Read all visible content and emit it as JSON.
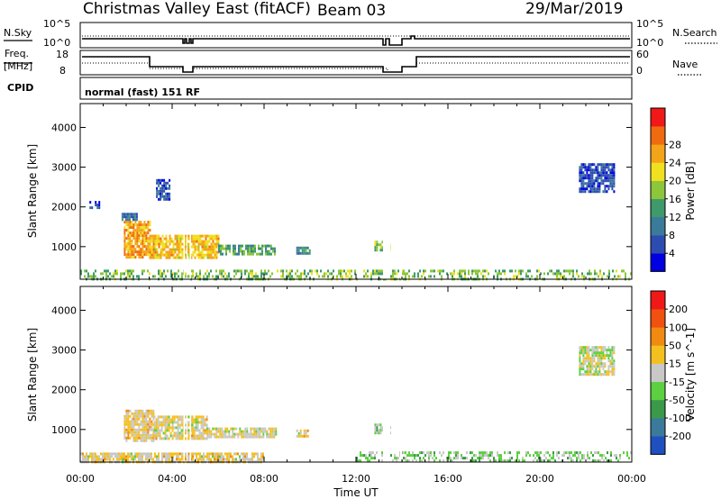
{
  "header": {
    "station": "Christmas Valley East (fitACF)",
    "beam": "Beam 03",
    "date": "29/Mar/2019"
  },
  "strip_panels": {
    "nsky": {
      "left_label": "N.Sky",
      "right_label": "N.Search",
      "left_ticks": [
        "10^5",
        "10^0"
      ],
      "right_ticks": [
        "10^5",
        "10^0"
      ]
    },
    "freq": {
      "left_label_1": "Freq.",
      "left_label_2": "[MHz]",
      "right_label": "Nave",
      "left_ticks": [
        "18",
        "8"
      ],
      "right_ticks": [
        "60",
        "0"
      ]
    },
    "cpid": {
      "label": "CPID",
      "value": "normal (fast) 151 RF"
    }
  },
  "colors": {
    "power_scale": [
      "#0000e0",
      "#2d4cb0",
      "#3a7a9a",
      "#3e9a6a",
      "#8cc63a",
      "#f0e020",
      "#f4a418",
      "#f06a10",
      "#f01818"
    ],
    "velocity_scale": [
      "#f01818",
      "#f05010",
      "#f08a10",
      "#f4c020",
      "#c8c8c8",
      "#5cd040",
      "#3a9a4a",
      "#3a7a9a",
      "#2050c0"
    ]
  },
  "chart_data": [
    {
      "type": "heatmap",
      "name": "Power",
      "title": "",
      "xlabel": "Time UT",
      "ylabel": "Slant Range [km]",
      "x_ticks": [
        "00:00",
        "04:00",
        "08:00",
        "12:00",
        "16:00",
        "20:00",
        "00:00"
      ],
      "y_ticks": [
        1000,
        2000,
        3000,
        4000
      ],
      "xlim_hours": [
        0,
        24
      ],
      "ylim_km": [
        180,
        4600
      ],
      "colorbar": {
        "label": "Power [dB]",
        "ticks": [
          "4",
          "8",
          "12",
          "16",
          "20",
          "24",
          "28"
        ],
        "range": [
          0,
          30
        ]
      },
      "regions": [
        {
          "t0": 1.9,
          "t1": 3.0,
          "r0": 700,
          "r1": 1650,
          "value": 22
        },
        {
          "t0": 3.0,
          "t1": 6.0,
          "r0": 750,
          "r1": 1300,
          "value": 20
        },
        {
          "t0": 6.0,
          "t1": 8.5,
          "r0": 800,
          "r1": 1050,
          "value": 12
        },
        {
          "t0": 9.4,
          "t1": 10.0,
          "r0": 850,
          "r1": 1000,
          "value": 10
        },
        {
          "t0": 12.8,
          "t1": 13.5,
          "r0": 900,
          "r1": 1150,
          "value": 16
        },
        {
          "t0": 1.8,
          "t1": 2.5,
          "r0": 1650,
          "r1": 1850,
          "value": 8
        },
        {
          "t0": 0.4,
          "t1": 0.8,
          "r0": 2000,
          "r1": 2150,
          "value": 6
        },
        {
          "t0": 3.3,
          "t1": 3.9,
          "r0": 2200,
          "r1": 2700,
          "value": 6
        },
        {
          "t0": 21.7,
          "t1": 23.2,
          "r0": 2400,
          "r1": 3100,
          "value": 5
        },
        {
          "t0": 0.0,
          "t1": 24.0,
          "r0": 180,
          "r1": 420,
          "value": 14
        }
      ]
    },
    {
      "type": "heatmap",
      "name": "Velocity",
      "title": "",
      "xlabel": "Time UT",
      "ylabel": "Slant Range [km]",
      "x_ticks": [
        "00:00",
        "04:00",
        "08:00",
        "12:00",
        "16:00",
        "20:00",
        "00:00"
      ],
      "y_ticks": [
        1000,
        2000,
        3000,
        4000
      ],
      "xlim_hours": [
        0,
        24
      ],
      "ylim_km": [
        180,
        4600
      ],
      "colorbar": {
        "label": "Velocity [m s^-1]",
        "ticks": [
          "200",
          "100",
          "50",
          "15",
          "-15",
          "-50",
          "-100",
          "-200"
        ],
        "range": [
          -250,
          250
        ]
      },
      "regions": [
        {
          "t0": 1.9,
          "t1": 3.2,
          "r0": 700,
          "r1": 1500,
          "value": 40
        },
        {
          "t0": 3.2,
          "t1": 5.5,
          "r0": 750,
          "r1": 1350,
          "value": 25
        },
        {
          "t0": 5.5,
          "t1": 8.5,
          "r0": 800,
          "r1": 1050,
          "value": 10
        },
        {
          "t0": 9.4,
          "t1": 10.0,
          "r0": 850,
          "r1": 1000,
          "value": 30
        },
        {
          "t0": 12.8,
          "t1": 13.5,
          "r0": 900,
          "r1": 1150,
          "value": -40
        },
        {
          "t0": 0.0,
          "t1": 8.0,
          "r0": 180,
          "r1": 420,
          "value": 30
        },
        {
          "t0": 12.0,
          "t1": 24.0,
          "r0": 180,
          "r1": 450,
          "value": -40
        },
        {
          "t0": 21.7,
          "t1": 23.2,
          "r0": 2400,
          "r1": 3100,
          "value": 0
        }
      ]
    }
  ]
}
